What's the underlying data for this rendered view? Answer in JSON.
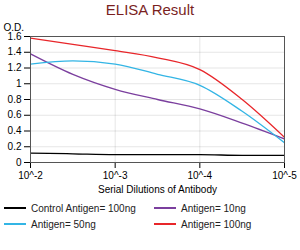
{
  "chart_data": {
    "type": "line",
    "title": "ELISA Result",
    "x_label": "Serial Dilutions of Antibody",
    "y_label": "O.D.",
    "x": [
      0.01,
      0.00316,
      0.001,
      0.000316,
      0.0001,
      3.16e-05,
      1e-05
    ],
    "series": [
      {
        "name": "Control Antigen= 100ng",
        "color": "#000000",
        "values": [
          0.12,
          0.11,
          0.1,
          0.1,
          0.1,
          0.09,
          0.09
        ]
      },
      {
        "name": "Antigen= 10ng",
        "color": "#7b3f9e",
        "values": [
          1.38,
          1.12,
          0.93,
          0.8,
          0.68,
          0.5,
          0.3
        ]
      },
      {
        "name": "Antigen= 50ng",
        "color": "#33b5e5",
        "values": [
          1.25,
          1.29,
          1.25,
          1.12,
          0.98,
          0.65,
          0.25
        ]
      },
      {
        "name": "Antigen= 100ng",
        "color": "#e8262a",
        "values": [
          1.58,
          1.5,
          1.42,
          1.33,
          1.18,
          0.8,
          0.32
        ]
      }
    ],
    "xlim": [
      0.01,
      1e-05
    ],
    "xticks": [
      {
        "value": 0.01,
        "label": "10^-2"
      },
      {
        "value": 0.001,
        "label": "10^-3"
      },
      {
        "value": 0.0001,
        "label": "10^-4"
      },
      {
        "value": 1e-05,
        "label": "10^-5"
      }
    ],
    "ylim": [
      0,
      1.6
    ],
    "yticks": [
      0,
      0.2,
      0.4,
      0.6,
      0.8,
      1,
      1.2,
      1.4,
      1.6
    ],
    "log": "x",
    "grid": true,
    "legend": "bottom",
    "line_style": "solid"
  }
}
